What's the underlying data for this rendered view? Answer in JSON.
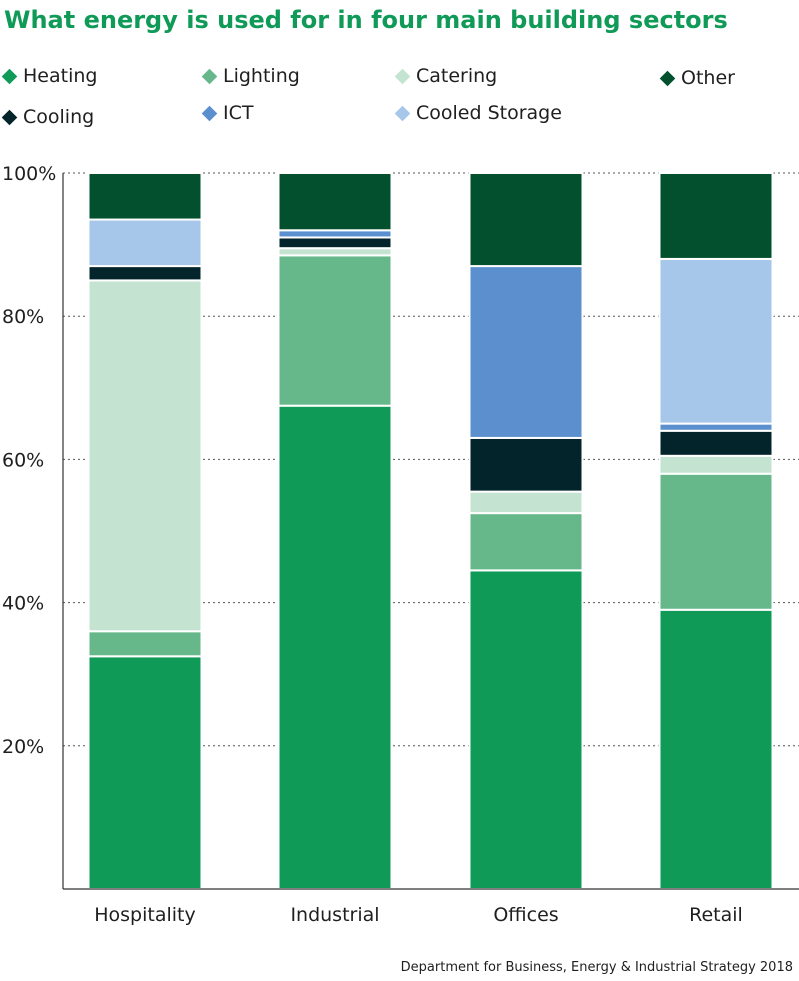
{
  "title": "What energy is used for in four main building sectors",
  "source": "Department for Business, Energy & Industrial Strategy 2018",
  "legend": [
    {
      "label": "Heating",
      "color": "#0f9a58"
    },
    {
      "label": "Lighting",
      "color": "#66b88a"
    },
    {
      "label": "Catering",
      "color": "#c4e4d1"
    },
    {
      "label": "Other",
      "color": "#02502e"
    },
    {
      "label": "Cooling",
      "color": "#03242a"
    },
    {
      "label": "ICT",
      "color": "#5b8fcd"
    },
    {
      "label": "Cooled Storage",
      "color": "#a6c6ea"
    }
  ],
  "chart_data": {
    "type": "bar",
    "stacked": true,
    "categories": [
      "Hospitality",
      "Industrial",
      "Offices",
      "Retail"
    ],
    "ylim": [
      0,
      100
    ],
    "yticks": [
      "20%",
      "40%",
      "60%",
      "80%",
      "100%"
    ],
    "ytick_values": [
      20,
      40,
      60,
      80,
      100
    ],
    "grid": true,
    "series": [
      {
        "name": "Heating",
        "color": "#0f9a58",
        "values": [
          32.5,
          67.5,
          44.5,
          39
        ]
      },
      {
        "name": "Lighting",
        "color": "#66b88a",
        "values": [
          3.5,
          21,
          8,
          19
        ]
      },
      {
        "name": "Catering",
        "color": "#c4e4d1",
        "values": [
          49,
          1,
          3,
          2.5
        ]
      },
      {
        "name": "Cooling",
        "color": "#03242a",
        "values": [
          2,
          1.5,
          7.5,
          3.5
        ]
      },
      {
        "name": "ICT",
        "color": "#5b8fcd",
        "values": [
          0,
          1,
          24,
          1
        ]
      },
      {
        "name": "Cooled Storage",
        "color": "#a6c6ea",
        "values": [
          6.5,
          0,
          0,
          23
        ]
      },
      {
        "name": "Other",
        "color": "#02502e",
        "values": [
          6.5,
          8,
          13,
          12
        ]
      }
    ]
  }
}
